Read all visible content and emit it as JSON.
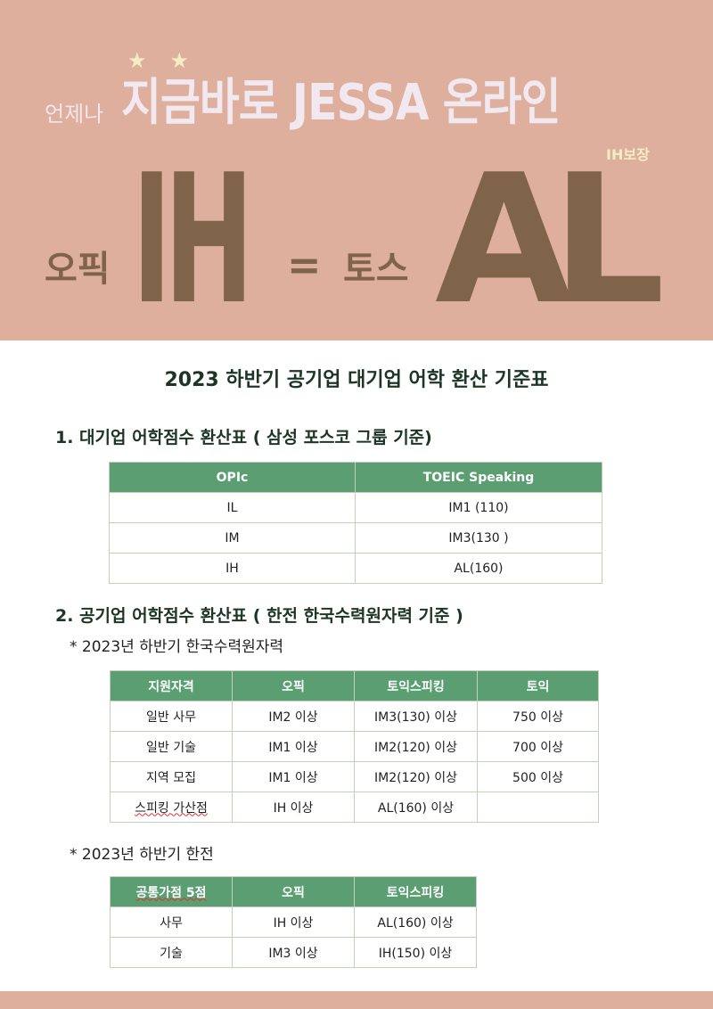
{
  "banner": {
    "prefix": "언제나",
    "headline": "지금바로 JESSA 온라인",
    "stars": "★★",
    "badge": "IH보장",
    "opic_label": "오픽",
    "opic_grade": "IH",
    "equals": "=",
    "tos_label": "토스",
    "tos_grade": "AL"
  },
  "title": "2023 하반기 공기업 대기업 어학 환산 기준표",
  "section1": {
    "heading": "1. 대기업  어학점수 환산표 ( 삼성  포스코 그룹 기준)",
    "headers": [
      "OPIc",
      "TOEIC Speaking"
    ],
    "rows": [
      [
        "IL",
        "IM1 (110)"
      ],
      [
        "IM",
        "IM3(130 )"
      ],
      [
        "IH",
        "AL(160)"
      ]
    ]
  },
  "section2": {
    "heading": "2. 공기업  어학점수 환산표  ( 한전 한국수력원자력 기준 )",
    "sub1": "* 2023년 하반기 한국수력원자력",
    "table1": {
      "headers": [
        "지원자격",
        "오픽",
        "토익스피킹",
        "토익"
      ],
      "rows": [
        [
          "일반 사무",
          "IM2 이상",
          "IM3(130) 이상",
          "750 이상"
        ],
        [
          "일반 기술",
          "IM1 이상",
          "IM2(120) 이상",
          "700 이상"
        ],
        [
          "지역 모집",
          "IM1 이상",
          "IM2(120) 이상",
          "500 이상"
        ],
        [
          "스피킹 가산점",
          "IH 이상",
          "AL(160) 이상",
          ""
        ]
      ]
    },
    "sub2": "* 2023년 하반기 한전",
    "table2": {
      "headers": [
        "공통가점 5점",
        "오픽",
        "토익스피킹"
      ],
      "rows": [
        [
          "사무",
          "IH 이상",
          "AL(160) 이상"
        ],
        [
          "기술",
          "IM3 이상",
          "IH(150) 이상"
        ]
      ]
    }
  },
  "colors": {
    "banner": "#deaf9c",
    "brown": "#80644a",
    "header_green": "#5a9e72",
    "title_green": "#1d3526"
  }
}
